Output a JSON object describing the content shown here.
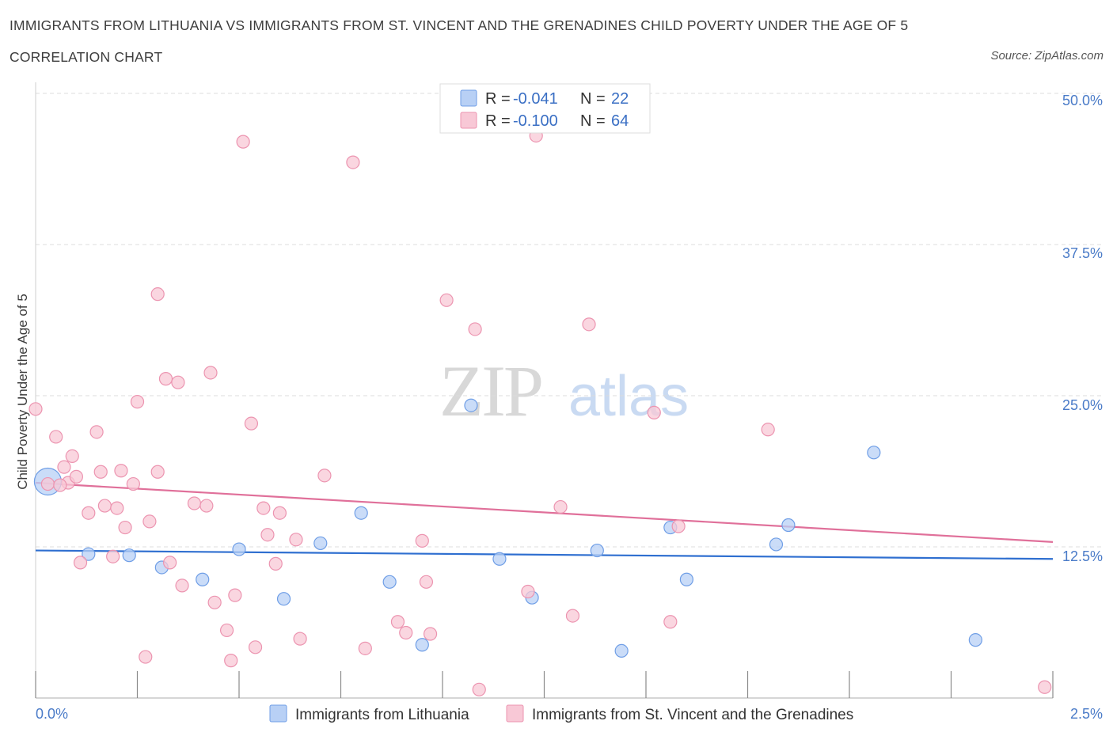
{
  "header": {
    "title": "IMMIGRANTS FROM LITHUANIA VS IMMIGRANTS FROM ST. VINCENT AND THE GRENADINES CHILD POVERTY UNDER THE AGE OF 5",
    "subtitle": "CORRELATION CHART",
    "source": "Source: ZipAtlas.com"
  },
  "watermark": {
    "zip": "ZIP",
    "atlas": "atlas"
  },
  "legend_top": [
    {
      "r_label": "R = ",
      "r_value": "-0.041",
      "n_label": "N = ",
      "n_value": "22"
    },
    {
      "r_label": "R = ",
      "r_value": "-0.100",
      "n_label": "N = ",
      "n_value": "64"
    }
  ],
  "chart_data": {
    "type": "scatter",
    "xlabel": "",
    "ylabel": "Child Poverty Under the Age of 5",
    "xlim": [
      0,
      2.5
    ],
    "ylim": [
      0,
      50
    ],
    "x_tick_labels": [
      {
        "value": 0,
        "label": "0.0%"
      },
      {
        "value": 2.5,
        "label": "2.5%"
      }
    ],
    "y_tick_labels": [
      {
        "value": 12.5,
        "label": "12.5%"
      },
      {
        "value": 25,
        "label": "25.0%"
      },
      {
        "value": 37.5,
        "label": "37.5%"
      },
      {
        "value": 50,
        "label": "50.0%"
      }
    ],
    "grid": "horizontal dashed",
    "colors": {
      "lithuania_fill": "#b8d0f5",
      "lithuania_edge": "#6f9ee6",
      "lithuania_line": "#2f6fd0",
      "vincent_fill": "#f8c8d6",
      "vincent_edge": "#ec94b0",
      "vincent_line": "#e0709a"
    },
    "series": [
      {
        "name": "Immigrants from Lithuania",
        "trend": {
          "x": [
            0,
            2.5
          ],
          "y": [
            12.2,
            11.5
          ]
        },
        "points": [
          {
            "x": 0.03,
            "y": 17.9,
            "big": true
          },
          {
            "x": 0.13,
            "y": 11.9
          },
          {
            "x": 0.23,
            "y": 11.8
          },
          {
            "x": 0.31,
            "y": 10.8
          },
          {
            "x": 0.41,
            "y": 9.8
          },
          {
            "x": 0.5,
            "y": 12.3
          },
          {
            "x": 0.61,
            "y": 8.2
          },
          {
            "x": 0.7,
            "y": 12.8
          },
          {
            "x": 0.8,
            "y": 15.3
          },
          {
            "x": 0.87,
            "y": 9.6
          },
          {
            "x": 0.95,
            "y": 4.4
          },
          {
            "x": 1.07,
            "y": 24.2
          },
          {
            "x": 1.14,
            "y": 11.5
          },
          {
            "x": 1.22,
            "y": 8.3
          },
          {
            "x": 1.38,
            "y": 12.2
          },
          {
            "x": 1.44,
            "y": 3.9
          },
          {
            "x": 1.56,
            "y": 14.1
          },
          {
            "x": 1.6,
            "y": 9.8
          },
          {
            "x": 1.82,
            "y": 12.7
          },
          {
            "x": 1.85,
            "y": 14.3
          },
          {
            "x": 2.06,
            "y": 20.3
          },
          {
            "x": 2.31,
            "y": 4.8
          }
        ]
      },
      {
        "name": "Immigrants from St. Vincent and the Grenadines",
        "trend": {
          "x": [
            0,
            2.5
          ],
          "y": [
            17.8,
            12.9
          ]
        },
        "points": [
          {
            "x": 0.0,
            "y": 23.9
          },
          {
            "x": 0.03,
            "y": 17.7
          },
          {
            "x": 0.05,
            "y": 21.6
          },
          {
            "x": 0.07,
            "y": 19.1
          },
          {
            "x": 0.08,
            "y": 17.8
          },
          {
            "x": 0.09,
            "y": 20.0
          },
          {
            "x": 0.1,
            "y": 18.3
          },
          {
            "x": 0.11,
            "y": 11.2
          },
          {
            "x": 0.13,
            "y": 15.3
          },
          {
            "x": 0.15,
            "y": 22.0
          },
          {
            "x": 0.16,
            "y": 18.7
          },
          {
            "x": 0.17,
            "y": 15.9
          },
          {
            "x": 0.19,
            "y": 11.7
          },
          {
            "x": 0.2,
            "y": 15.7
          },
          {
            "x": 0.21,
            "y": 18.8
          },
          {
            "x": 0.22,
            "y": 14.1
          },
          {
            "x": 0.24,
            "y": 17.7
          },
          {
            "x": 0.25,
            "y": 24.5
          },
          {
            "x": 0.27,
            "y": 3.4
          },
          {
            "x": 0.28,
            "y": 14.6
          },
          {
            "x": 0.3,
            "y": 18.7
          },
          {
            "x": 0.3,
            "y": 33.4
          },
          {
            "x": 0.32,
            "y": 26.4
          },
          {
            "x": 0.33,
            "y": 11.2
          },
          {
            "x": 0.35,
            "y": 26.1
          },
          {
            "x": 0.36,
            "y": 9.3
          },
          {
            "x": 0.39,
            "y": 16.1
          },
          {
            "x": 0.42,
            "y": 15.9
          },
          {
            "x": 0.43,
            "y": 26.9
          },
          {
            "x": 0.44,
            "y": 7.9
          },
          {
            "x": 0.47,
            "y": 5.6
          },
          {
            "x": 0.48,
            "y": 3.1
          },
          {
            "x": 0.49,
            "y": 8.5
          },
          {
            "x": 0.51,
            "y": 46.0
          },
          {
            "x": 0.53,
            "y": 22.7
          },
          {
            "x": 0.54,
            "y": 4.2
          },
          {
            "x": 0.56,
            "y": 15.7
          },
          {
            "x": 0.57,
            "y": 13.5
          },
          {
            "x": 0.59,
            "y": 11.1
          },
          {
            "x": 0.6,
            "y": 15.3
          },
          {
            "x": 0.64,
            "y": 13.1
          },
          {
            "x": 0.65,
            "y": 4.9
          },
          {
            "x": 0.71,
            "y": 18.4
          },
          {
            "x": 0.78,
            "y": 44.3
          },
          {
            "x": 0.81,
            "y": 4.1
          },
          {
            "x": 0.89,
            "y": 6.3
          },
          {
            "x": 0.91,
            "y": 5.4
          },
          {
            "x": 0.95,
            "y": 13.0
          },
          {
            "x": 0.96,
            "y": 9.6
          },
          {
            "x": 0.97,
            "y": 5.3
          },
          {
            "x": 1.01,
            "y": 32.9
          },
          {
            "x": 1.08,
            "y": 30.5
          },
          {
            "x": 1.09,
            "y": 0.7
          },
          {
            "x": 1.21,
            "y": 8.8
          },
          {
            "x": 1.23,
            "y": 46.5
          },
          {
            "x": 1.29,
            "y": 15.8
          },
          {
            "x": 1.32,
            "y": 6.8
          },
          {
            "x": 1.36,
            "y": 30.9
          },
          {
            "x": 1.52,
            "y": 23.6
          },
          {
            "x": 1.56,
            "y": 6.3
          },
          {
            "x": 1.58,
            "y": 14.2
          },
          {
            "x": 1.8,
            "y": 22.2
          },
          {
            "x": 2.48,
            "y": 0.9
          },
          {
            "x": 0.06,
            "y": 17.6
          }
        ]
      }
    ]
  }
}
